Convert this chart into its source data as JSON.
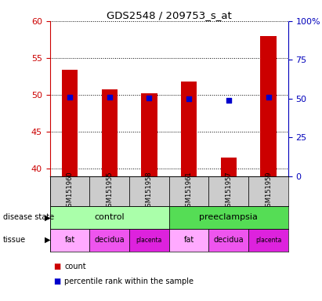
{
  "title": "GDS2548 / 209753_s_at",
  "samples": [
    "GSM151960",
    "GSM151955",
    "GSM151958",
    "GSM151961",
    "GSM151957",
    "GSM151959"
  ],
  "counts": [
    53.4,
    50.8,
    50.2,
    51.8,
    41.5,
    58.0
  ],
  "percentile_ranks": [
    51,
    51,
    50.5,
    50,
    49,
    51
  ],
  "ylim_left": [
    39,
    60
  ],
  "ylim_right": [
    0,
    100
  ],
  "yticks_left": [
    40,
    45,
    50,
    55,
    60
  ],
  "yticks_right": [
    0,
    25,
    50,
    75,
    100
  ],
  "bar_color": "#cc0000",
  "dot_color": "#0000cc",
  "bar_width": 0.4,
  "tissue_colors": [
    "#ffaaff",
    "#ee55ee",
    "#dd22dd",
    "#ffaaff",
    "#ee55ee",
    "#dd22dd"
  ],
  "tissue_labels": [
    "fat",
    "decidua",
    "placenta",
    "fat",
    "decidua",
    "placenta"
  ],
  "control_color": "#aaffaa",
  "preeclampsia_color": "#55dd55",
  "sample_box_color": "#cccccc",
  "ylabel_left_color": "#cc0000",
  "ylabel_right_color": "#0000bb",
  "legend_count_color": "#cc0000",
  "legend_pct_color": "#0000cc"
}
